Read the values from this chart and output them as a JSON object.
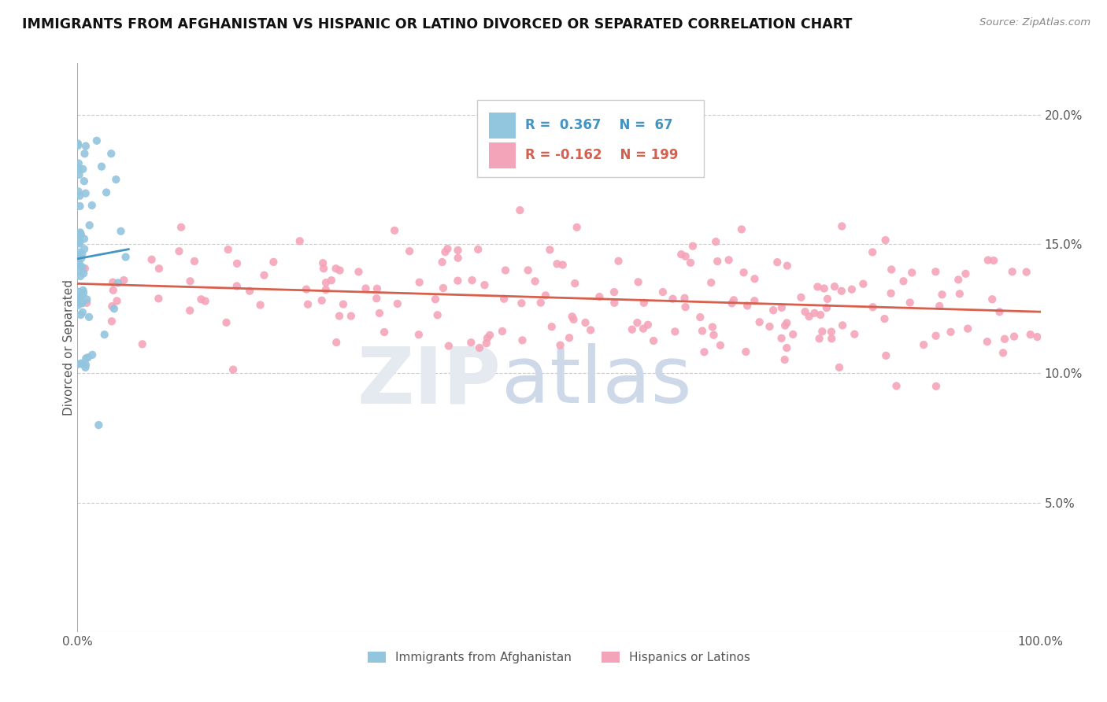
{
  "title": "IMMIGRANTS FROM AFGHANISTAN VS HISPANIC OR LATINO DIVORCED OR SEPARATED CORRELATION CHART",
  "source_text": "Source: ZipAtlas.com",
  "ylabel": "Divorced or Separated",
  "legend_blue_r": "R =  0.367",
  "legend_blue_n": "N =  67",
  "legend_pink_r": "R = -0.162",
  "legend_pink_n": "N = 199",
  "legend1_label": "Immigrants from Afghanistan",
  "legend2_label": "Hispanics or Latinos",
  "blue_color": "#92c5de",
  "pink_color": "#f4a4b8",
  "blue_line_color": "#4393c3",
  "pink_line_color": "#d6604d",
  "background_color": "#ffffff",
  "grid_color": "#cccccc",
  "xlim": [
    0.0,
    1.0
  ],
  "ylim": [
    0.0,
    0.22
  ],
  "yticks": [
    0.05,
    0.1,
    0.15,
    0.2
  ],
  "ytick_labels": [
    "5.0%",
    "10.0%",
    "15.0%",
    "20.0%"
  ]
}
